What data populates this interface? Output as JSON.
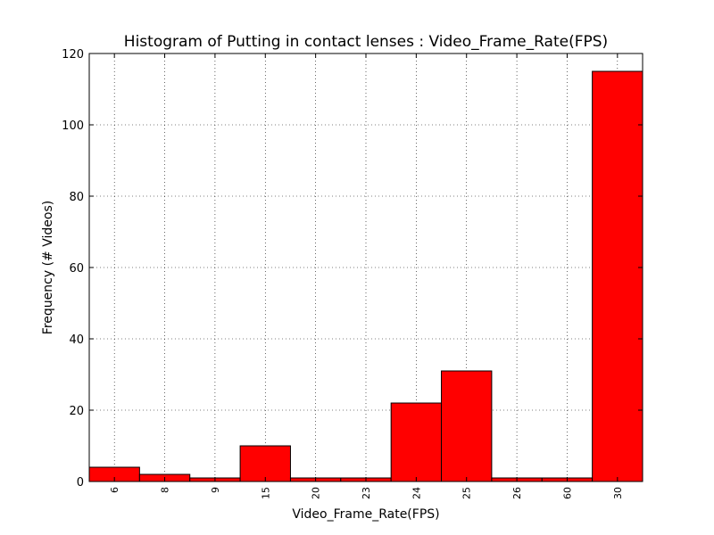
{
  "chart_data": {
    "type": "bar",
    "title": "Histogram of Putting in contact lenses : Video_Frame_Rate(FPS)",
    "xlabel": "Video_Frame_Rate(FPS)",
    "ylabel": "Frequency (# Videos)",
    "categories": [
      "6",
      "8",
      "9",
      "15",
      "20",
      "23",
      "24",
      "25",
      "26",
      "60",
      "30"
    ],
    "values": [
      4,
      2,
      1,
      10,
      1,
      1,
      22,
      31,
      1,
      1,
      115
    ],
    "ylim": [
      0,
      120
    ],
    "yticks": [
      0,
      20,
      40,
      60,
      80,
      100,
      120
    ],
    "bar_color": "#ff0000",
    "grid": true
  }
}
